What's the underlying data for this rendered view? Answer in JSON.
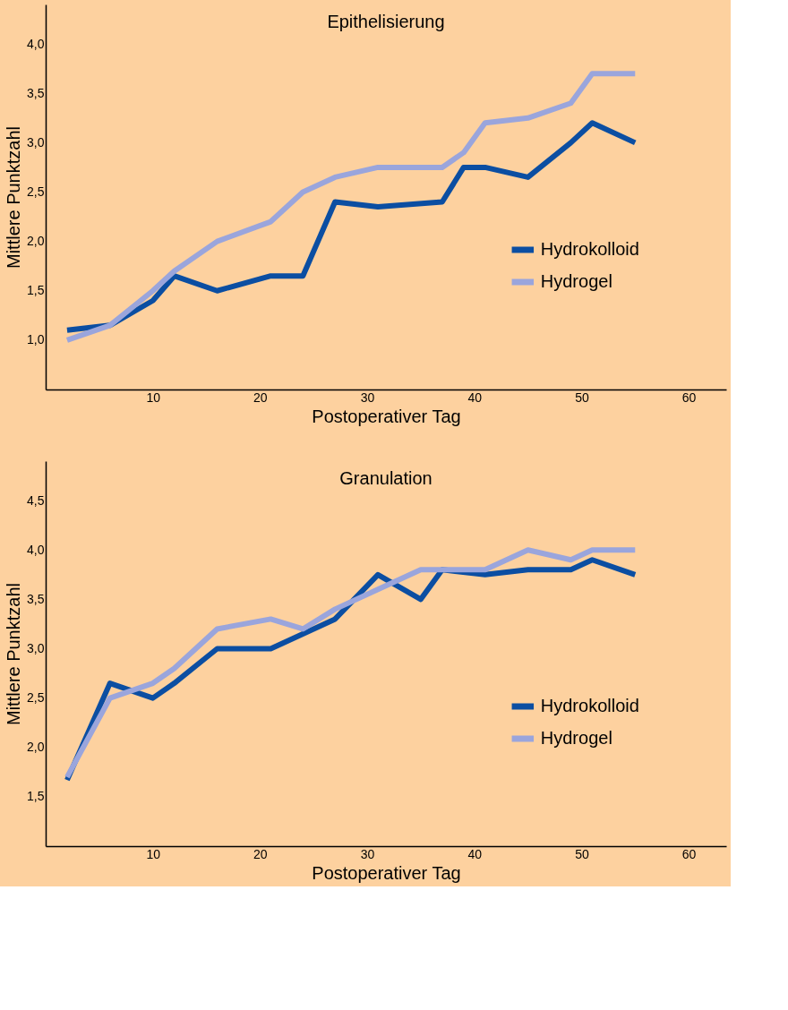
{
  "chart_data": [
    {
      "type": "line",
      "title": "Epithelisierung",
      "xlabel": "Postoperativer Tag",
      "ylabel": "Mittlere Punktzahl",
      "x": [
        2,
        6,
        10,
        12,
        16,
        21,
        24,
        27,
        31,
        37,
        39,
        41,
        45,
        49,
        51,
        55
      ],
      "series": [
        {
          "name": "Hydrokolloid",
          "color": "#0b4ea2",
          "values": [
            1.1,
            1.15,
            1.4,
            1.65,
            1.5,
            1.65,
            1.65,
            2.4,
            2.35,
            2.4,
            2.75,
            2.75,
            2.65,
            3.0,
            3.2,
            3.0
          ]
        },
        {
          "name": "Hydrogel",
          "color": "#9aa5dc",
          "values": [
            1.0,
            1.15,
            1.5,
            1.7,
            2.0,
            2.2,
            2.5,
            2.65,
            2.75,
            2.75,
            2.9,
            3.2,
            3.25,
            3.4,
            3.7,
            3.7
          ]
        }
      ],
      "xlim": [
        0,
        63.5
      ],
      "xticks": [
        10,
        20,
        30,
        40,
        50,
        60
      ],
      "ylim": [
        0.5,
        4.4
      ],
      "yticks": [
        {
          "value": 1.0,
          "label": "1,0"
        },
        {
          "value": 1.5,
          "label": "1,5"
        },
        {
          "value": 2.0,
          "label": "2,0"
        },
        {
          "value": 2.5,
          "label": "2,5"
        },
        {
          "value": 3.0,
          "label": "3,0"
        },
        {
          "value": 3.5,
          "label": "3,5"
        },
        {
          "value": 4.0,
          "label": "4,0"
        }
      ],
      "grid": false,
      "legend": "right",
      "marker": "none",
      "line_style": "solid"
    },
    {
      "type": "line",
      "title": "Granulation",
      "xlabel": "Postoperativer Tag",
      "ylabel": "Mittlere Punktzahl",
      "x": [
        2,
        6,
        10,
        12,
        16,
        21,
        24,
        27,
        31,
        35,
        37,
        41,
        45,
        49,
        51,
        55
      ],
      "series": [
        {
          "name": "Hydrokolloid",
          "color": "#0b4ea2",
          "values": [
            1.67,
            2.65,
            2.5,
            2.65,
            3.0,
            3.0,
            3.15,
            3.3,
            3.75,
            3.5,
            3.8,
            3.75,
            3.8,
            3.8,
            3.9,
            3.75
          ]
        },
        {
          "name": "Hydrogel",
          "color": "#9aa5dc",
          "values": [
            1.7,
            2.5,
            2.65,
            2.8,
            3.2,
            3.3,
            3.2,
            3.4,
            3.6,
            3.8,
            3.8,
            3.8,
            4.0,
            3.9,
            4.0,
            4.0
          ]
        }
      ],
      "xlim": [
        0,
        63.5
      ],
      "xticks": [
        10,
        20,
        30,
        40,
        50,
        60
      ],
      "ylim": [
        1.0,
        4.9
      ],
      "yticks": [
        {
          "value": 1.5,
          "label": "1,5"
        },
        {
          "value": 2.0,
          "label": "2,0"
        },
        {
          "value": 2.5,
          "label": "2,5"
        },
        {
          "value": 3.0,
          "label": "3,0"
        },
        {
          "value": 3.5,
          "label": "3,5"
        },
        {
          "value": 4.0,
          "label": "4,0"
        },
        {
          "value": 4.5,
          "label": "4,5"
        }
      ],
      "grid": false,
      "legend": "right",
      "marker": "none",
      "line_style": "solid"
    }
  ]
}
